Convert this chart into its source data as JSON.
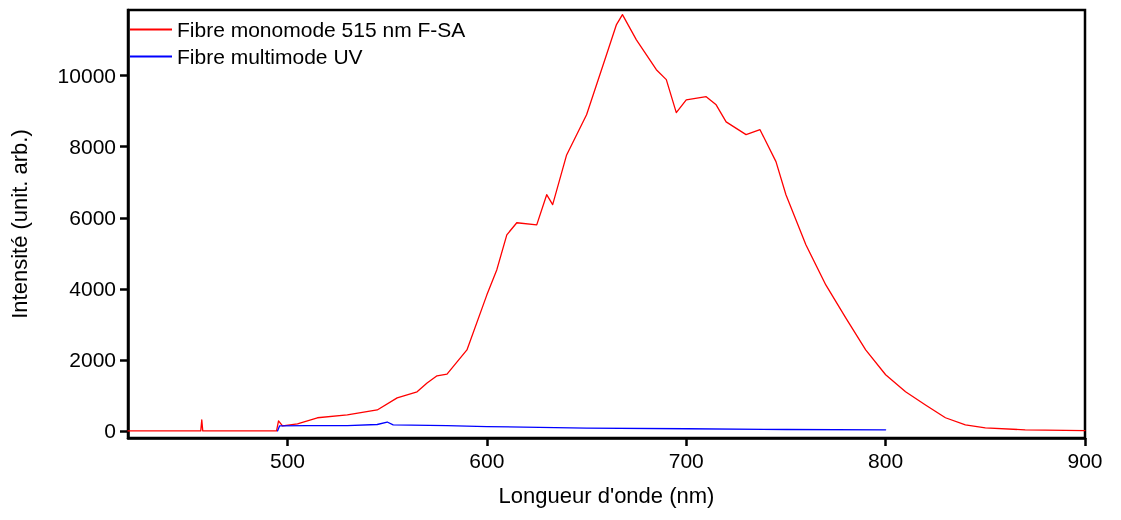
{
  "chart_data": {
    "type": "line",
    "xlabel": "Longueur d'onde (nm)",
    "ylabel": "Intensité (unit. arb.)",
    "xlim": [
      420,
      900
    ],
    "xticks": [
      500,
      600,
      700,
      800,
      900
    ],
    "ylim": [
      -200,
      11850
    ],
    "yticks": [
      0,
      2000,
      4000,
      6000,
      8000,
      10000
    ],
    "grid": false,
    "legend": "top left",
    "marker": "none",
    "line_style": "solid",
    "series": [
      {
        "name": "Fibre monomode 515 nm F-SA",
        "color": "#ff0000",
        "x": [
          420,
          456.5,
          457,
          457.5,
          494.5,
          495.5,
          497.5,
          505,
          515,
          530,
          545,
          555,
          565,
          570,
          575,
          580,
          590,
          600,
          605,
          610,
          615,
          625,
          630,
          633,
          640,
          650,
          660,
          665,
          668,
          675,
          685,
          690,
          695,
          700,
          710,
          715,
          720,
          730,
          737,
          745,
          750,
          760,
          770,
          780,
          790,
          800,
          810,
          820,
          830,
          840,
          850,
          870,
          900
        ],
        "values": [
          0,
          0,
          310,
          0,
          0,
          280,
          140,
          200,
          370,
          450,
          590,
          930,
          1100,
          1350,
          1550,
          1600,
          2280,
          3830,
          4540,
          5520,
          5860,
          5800,
          6650,
          6370,
          7770,
          8900,
          10590,
          11440,
          11720,
          11010,
          10170,
          9890,
          8960,
          9320,
          9410,
          9180,
          8700,
          8340,
          8480,
          7580,
          6650,
          5240,
          4110,
          3180,
          2280,
          1580,
          1100,
          730,
          370,
          170,
          85,
          30,
          10
        ]
      },
      {
        "name": "Fibre multimode UV",
        "color": "#0000ff",
        "x": [
          495,
          496,
          510,
          530,
          545,
          550,
          553,
          580,
          600,
          650,
          700,
          750,
          800
        ],
        "values": [
          0,
          140,
          150,
          150,
          180,
          250,
          170,
          150,
          120,
          80,
          60,
          40,
          30
        ]
      }
    ]
  }
}
